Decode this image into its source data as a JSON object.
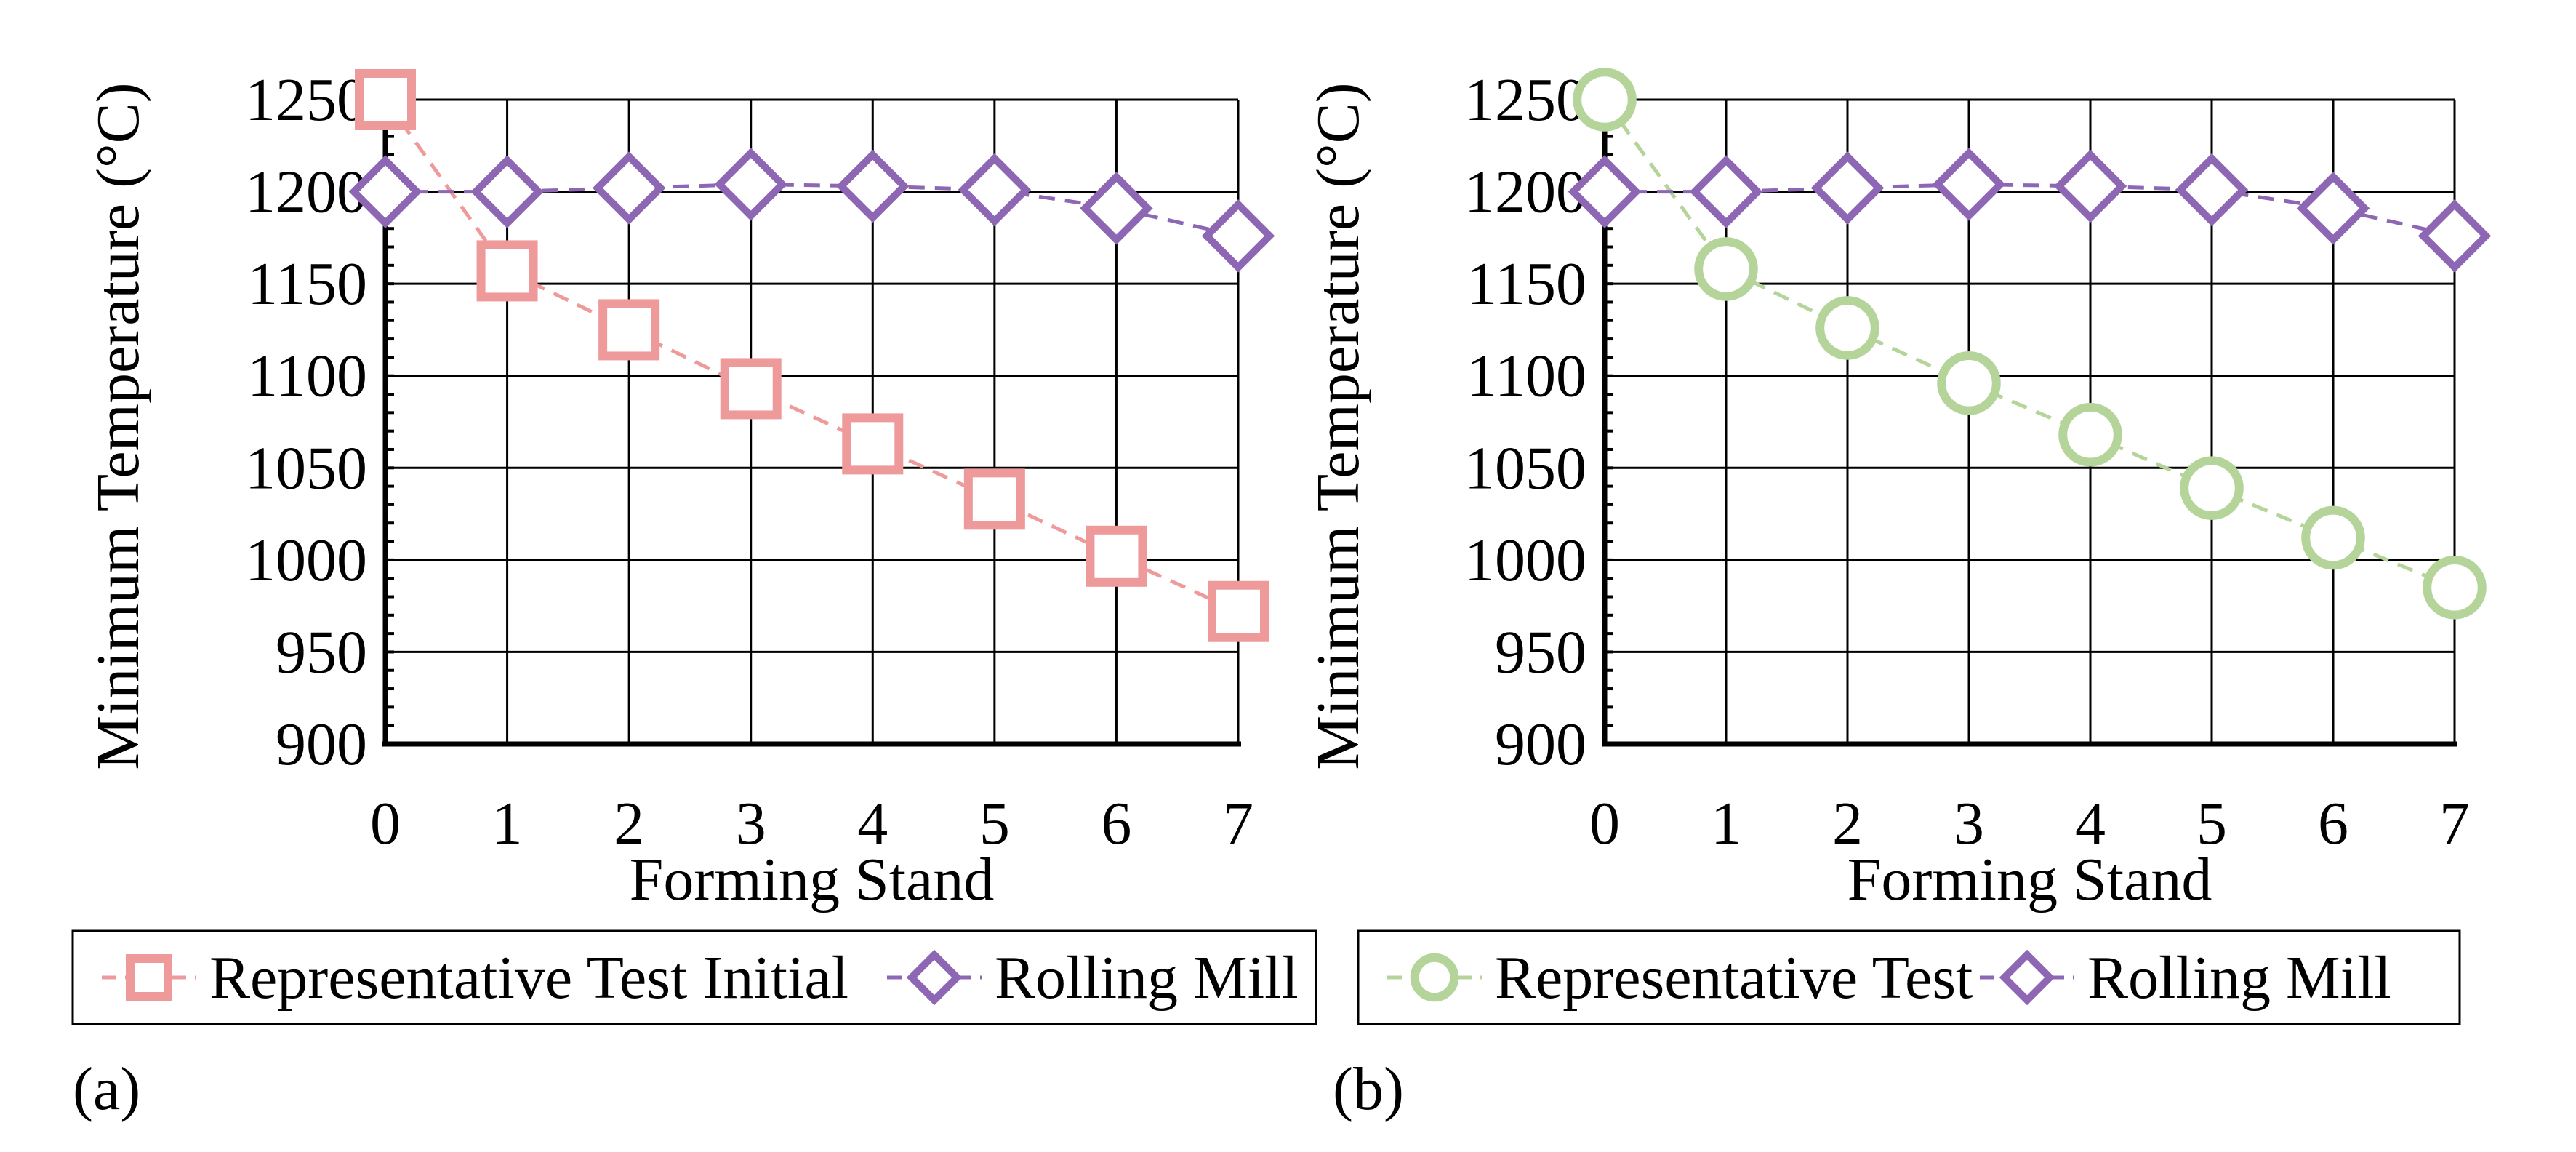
{
  "chart_data": [
    {
      "type": "line",
      "panel_label": "(a)",
      "xlabel": "Forming Stand",
      "ylabel": "Minimum Temperature (°C)",
      "x": [
        0,
        1,
        2,
        3,
        4,
        5,
        6,
        7
      ],
      "xlim": [
        0,
        7
      ],
      "ylim": [
        900,
        1250
      ],
      "x_ticks": [
        "0",
        "1",
        "2",
        "3",
        "4",
        "5",
        "6",
        "7"
      ],
      "y_ticks": [
        "900",
        "950",
        "1000",
        "1050",
        "1100",
        "1150",
        "1200",
        "1250"
      ],
      "grid": true,
      "legend_position": "bottom",
      "series": [
        {
          "name": "Representative Test Initial",
          "marker": "square",
          "color": "#ee9a9a",
          "values": [
            1250,
            1157,
            1125,
            1093,
            1063,
            1033,
            1002,
            972
          ]
        },
        {
          "name": "Rolling Mill",
          "marker": "diamond",
          "color": "#8e67b4",
          "values": [
            1200,
            1200,
            1202,
            1204,
            1203,
            1201,
            1191,
            1176
          ]
        }
      ]
    },
    {
      "type": "line",
      "panel_label": "(b)",
      "xlabel": "Forming Stand",
      "ylabel": "Minimum Temperature (°C)",
      "x": [
        0,
        1,
        2,
        3,
        4,
        5,
        6,
        7
      ],
      "xlim": [
        0,
        7
      ],
      "ylim": [
        900,
        1250
      ],
      "x_ticks": [
        "0",
        "1",
        "2",
        "3",
        "4",
        "5",
        "6",
        "7"
      ],
      "y_ticks": [
        "900",
        "950",
        "1000",
        "1050",
        "1100",
        "1150",
        "1200",
        "1250"
      ],
      "grid": true,
      "legend_position": "bottom",
      "series": [
        {
          "name": "Representative Test",
          "marker": "circle",
          "color": "#b4d49a",
          "values": [
            1250,
            1158,
            1126,
            1096,
            1068,
            1039,
            1012,
            985
          ]
        },
        {
          "name": "Rolling Mill",
          "marker": "diamond",
          "color": "#8e67b4",
          "values": [
            1200,
            1200,
            1202,
            1204,
            1203,
            1201,
            1191,
            1176
          ]
        }
      ]
    }
  ]
}
